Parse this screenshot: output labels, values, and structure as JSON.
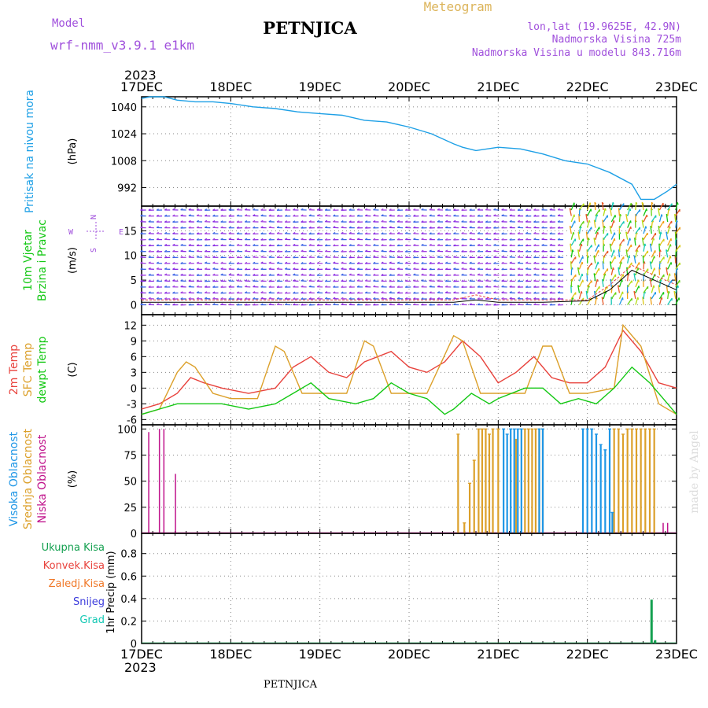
{
  "header": {
    "model_label": "Model",
    "model_value": "wrf-nmm_v3.9.1 e1km",
    "station": "PETNJICA",
    "meteogram_label": "Meteogram",
    "coords": "lon,lat (19.9625E, 42.9N)",
    "altitude": "Nadmorska Visina 725m",
    "model_altitude": "Nadmorska Visina u modelu 843.716m",
    "year": "2023",
    "footer_station": "PETNJICA",
    "credit": "made by Angel"
  },
  "colors": {
    "pressure": "#1ea0e6",
    "temp2m": "#e8423c",
    "sfc": "#dca02a",
    "dewpt": "#14c814",
    "low_cloud": "#c0148c",
    "mid_cloud": "#dca02a",
    "high_cloud": "#1e96e6",
    "total_precip": "#14a050",
    "convective_precip": "#e8423c",
    "freezing_precip": "#f07828",
    "snow": "#3c3cdc",
    "hail": "#14c8b4",
    "wind_label": "#14c814",
    "compass": "#a050dc"
  },
  "time_axis": {
    "ticks": [
      "17DEC",
      "18DEC",
      "19DEC",
      "20DEC",
      "21DEC",
      "22DEC",
      "23DEC"
    ]
  },
  "compass": {
    "n": "N",
    "e": "E",
    "s": "S",
    "w": "W"
  },
  "chart_data": [
    {
      "type": "line",
      "panel": "pressure",
      "ylabel_lines": [
        "Pritisak na nivou mora"
      ],
      "unit": "(hPa)",
      "yticks": [
        992,
        1008,
        1024,
        1040
      ],
      "ylim": [
        981,
        1046
      ],
      "grid": true,
      "series": [
        {
          "x": [
            0,
            0.1,
            0.25,
            0.4,
            0.6,
            0.8,
            1.0,
            1.25,
            1.5,
            1.75,
            2.0,
            2.25,
            2.5,
            2.75,
            3.0,
            3.25,
            3.5,
            3.6,
            3.75,
            4.0,
            4.25,
            4.5,
            4.75,
            5.0,
            5.25,
            5.5,
            5.6,
            5.75,
            5.9,
            6.0
          ],
          "y": [
            1045,
            1046,
            1046,
            1044,
            1043,
            1043,
            1042,
            1040,
            1039,
            1037,
            1036,
            1035,
            1032,
            1031,
            1028,
            1024,
            1018,
            1016,
            1014,
            1016,
            1015,
            1012,
            1008,
            1006,
            1001,
            994,
            985,
            985,
            990,
            994
          ]
        }
      ]
    },
    {
      "type": "barbs",
      "panel": "wind",
      "ylabel_lines": [
        "10m Vjetar",
        "Brzina i Pravac"
      ],
      "unit": "(m/s)",
      "yticks": [
        0,
        5,
        10,
        15
      ],
      "ylim": [
        -2,
        20
      ],
      "grid": true,
      "series": [
        {
          "name": "wind_speed_max",
          "x": [
            0,
            0.5,
            1,
            1.5,
            2,
            2.5,
            3,
            3.5,
            3.75,
            4,
            4.5,
            5,
            5.25,
            5.5,
            5.75,
            6
          ],
          "y": [
            1,
            1,
            1,
            1,
            1,
            1,
            1,
            1,
            2,
            1,
            1,
            1,
            4,
            8,
            6,
            4
          ]
        },
        {
          "name": "wind_speed_mean",
          "x": [
            0,
            0.5,
            1,
            1.5,
            2,
            2.5,
            3,
            3.5,
            3.75,
            4,
            4.5,
            5,
            5.25,
            5.5,
            5.75,
            6
          ],
          "y": [
            0.5,
            0.5,
            0.5,
            0.5,
            0.5,
            0.5,
            0.5,
            0.5,
            1,
            0.5,
            0.5,
            0.8,
            3,
            7,
            5,
            3
          ]
        }
      ]
    },
    {
      "type": "line",
      "panel": "temperature",
      "ylabel_lines": [
        "2m Temp",
        "SFC Temp",
        "dewpt Temp"
      ],
      "unit": "(C)",
      "yticks": [
        -6,
        -3,
        0,
        3,
        6,
        9,
        12
      ],
      "ylim": [
        -7,
        14
      ],
      "grid": true,
      "series": [
        {
          "name": "2m Temp",
          "x": [
            0,
            0.2,
            0.4,
            0.55,
            0.7,
            0.9,
            1.2,
            1.5,
            1.7,
            1.9,
            2.1,
            2.3,
            2.5,
            2.8,
            3.0,
            3.2,
            3.4,
            3.6,
            3.8,
            4.0,
            4.2,
            4.4,
            4.6,
            4.8,
            5.0,
            5.2,
            5.4,
            5.6,
            5.8,
            6.0
          ],
          "y": [
            -4,
            -3,
            -1,
            2,
            1,
            0,
            -1,
            0,
            4,
            6,
            3,
            2,
            5,
            7,
            4,
            3,
            5,
            9,
            6,
            1,
            3,
            6,
            2,
            1,
            1,
            4,
            11,
            7,
            1,
            0
          ]
        },
        {
          "name": "SFC Temp",
          "x": [
            0,
            0.2,
            0.4,
            0.5,
            0.6,
            0.8,
            1.0,
            1.3,
            1.5,
            1.6,
            1.8,
            2.0,
            2.3,
            2.5,
            2.6,
            2.8,
            3.0,
            3.2,
            3.5,
            3.6,
            3.8,
            4.0,
            4.3,
            4.5,
            4.6,
            4.8,
            5.0,
            5.3,
            5.4,
            5.6,
            5.8,
            6.0
          ],
          "y": [
            -5,
            -4,
            3,
            5,
            4,
            -1,
            -2,
            -2,
            8,
            7,
            -1,
            -1,
            -1,
            9,
            8,
            -1,
            -1,
            -1,
            10,
            9,
            -1,
            -1,
            -1,
            8,
            8,
            -1,
            -1,
            0,
            12,
            8,
            -3,
            -5
          ]
        },
        {
          "name": "dewpt Temp",
          "x": [
            0,
            0.2,
            0.4,
            0.6,
            0.9,
            1.2,
            1.5,
            1.7,
            1.9,
            2.1,
            2.4,
            2.6,
            2.8,
            3.0,
            3.2,
            3.4,
            3.5,
            3.7,
            3.9,
            4.0,
            4.3,
            4.5,
            4.7,
            4.9,
            5.1,
            5.3,
            5.5,
            5.7,
            5.9,
            6.0
          ],
          "y": [
            -5,
            -4,
            -3,
            -3,
            -3,
            -4,
            -3,
            -1,
            1,
            -2,
            -3,
            -2,
            1,
            -1,
            -2,
            -5,
            -4,
            -1,
            -3,
            -2,
            0,
            0,
            -3,
            -2,
            -3,
            0,
            4,
            1,
            -3,
            -5
          ]
        }
      ]
    },
    {
      "type": "bar",
      "panel": "cloud",
      "ylabel_lines": [
        "Visoka Oblacnost",
        "Srednja Oblacnost",
        "Niska Oblacnost"
      ],
      "unit": "(%)",
      "yticks": [
        0,
        25,
        50,
        75,
        100
      ],
      "ylim": [
        0,
        104
      ],
      "grid": true,
      "series": [
        {
          "name": "Niska Oblacnost",
          "x": [
            0.08,
            0.2,
            0.25,
            0.38,
            5.7,
            5.75,
            5.85,
            5.9
          ],
          "values": [
            97,
            100,
            100,
            57,
            95,
            90,
            10,
            10
          ]
        },
        {
          "name": "Srednja Oblacnost",
          "x": [
            3.55,
            3.62,
            3.68,
            3.73,
            3.78,
            3.82,
            3.86,
            3.9,
            3.94,
            4.0,
            4.2,
            4.3,
            4.34,
            4.38,
            4.42,
            4.46,
            4.5,
            5.3,
            5.35,
            5.4,
            5.45,
            5.5,
            5.55,
            5.6,
            5.65,
            5.7,
            5.75
          ],
          "values": [
            95,
            10,
            48,
            70,
            100,
            100,
            100,
            95,
            100,
            100,
            90,
            100,
            100,
            100,
            100,
            100,
            100,
            100,
            100,
            95,
            100,
            100,
            100,
            100,
            100,
            100,
            100
          ]
        },
        {
          "name": "Visoka Oblacnost",
          "x": [
            4.06,
            4.1,
            4.14,
            4.18,
            4.22,
            4.26,
            4.46,
            4.5,
            4.95,
            5.0,
            5.05,
            5.1,
            5.15,
            5.2,
            5.25,
            5.28
          ],
          "values": [
            100,
            95,
            100,
            100,
            100,
            100,
            100,
            100,
            100,
            100,
            100,
            95,
            85,
            80,
            100,
            20
          ]
        }
      ]
    },
    {
      "type": "bar",
      "panel": "precip",
      "ylabel_lines": [
        "Ukupna Kisa",
        "Konvek.Kisa",
        "Zaledj.Kisa",
        "Snijeg",
        "Grad"
      ],
      "unit": "1hr Precip (mm)",
      "yticks": [
        0,
        0.2,
        0.4,
        0.6,
        0.8
      ],
      "ylim": [
        0,
        0.98
      ],
      "grid": true,
      "series": [
        {
          "name": "Ukupna Kisa",
          "x": [
            5.72,
            5.76
          ],
          "values": [
            0.39,
            0.03
          ]
        }
      ]
    }
  ]
}
